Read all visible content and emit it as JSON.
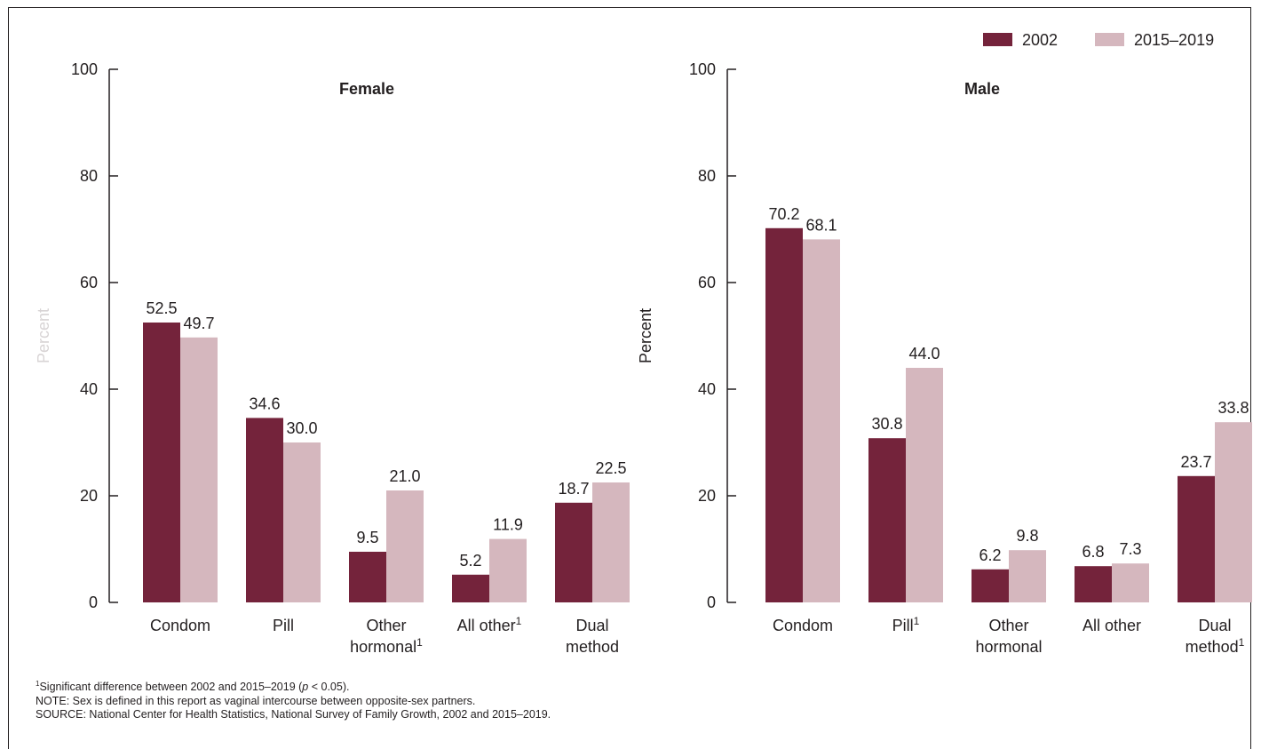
{
  "colors": {
    "series_2002": "#74233b",
    "series_2015_2019": "#d5b7be",
    "axis": "#231f20",
    "ylabel_faded": "#d8d4d5"
  },
  "legend": [
    {
      "name": "2002",
      "color": "#74233b"
    },
    {
      "name": "2015–2019",
      "color": "#d5b7be"
    }
  ],
  "chart_data": [
    {
      "type": "bar",
      "title": "Female",
      "ylabel": "Percent",
      "ylim": [
        0,
        100
      ],
      "yticks": [
        0,
        20,
        40,
        60,
        80,
        100
      ],
      "categories": [
        {
          "line1": "Condom",
          "line2": "",
          "sup": "",
          "sup_line": 0
        },
        {
          "line1": "Pill",
          "line2": "",
          "sup": "",
          "sup_line": 0
        },
        {
          "line1": "Other",
          "line2": "hormonal",
          "sup": "1",
          "sup_line": 2
        },
        {
          "line1": "All other",
          "line2": "",
          "sup": "1",
          "sup_line": 1
        },
        {
          "line1": "Dual",
          "line2": "method",
          "sup": "",
          "sup_line": 0
        }
      ],
      "series": [
        {
          "name": "2002",
          "values": [
            52.5,
            34.6,
            9.5,
            5.2,
            18.7
          ],
          "labels": [
            "52.5",
            "34.6",
            "9.5",
            "5.2",
            "18.7"
          ]
        },
        {
          "name": "2015–2019",
          "values": [
            49.7,
            30.0,
            21.0,
            11.9,
            22.5
          ],
          "labels": [
            "49.7",
            "30.0",
            "21.0",
            "11.9",
            "22.5"
          ]
        }
      ],
      "grid": false
    },
    {
      "type": "bar",
      "title": "Male",
      "ylabel": "Percent",
      "ylim": [
        0,
        100
      ],
      "yticks": [
        0,
        20,
        40,
        60,
        80,
        100
      ],
      "categories": [
        {
          "line1": "Condom",
          "line2": "",
          "sup": "",
          "sup_line": 0
        },
        {
          "line1": "Pill",
          "line2": "",
          "sup": "1",
          "sup_line": 1
        },
        {
          "line1": "Other",
          "line2": "hormonal",
          "sup": "",
          "sup_line": 0
        },
        {
          "line1": "All other",
          "line2": "",
          "sup": "",
          "sup_line": 0
        },
        {
          "line1": "Dual",
          "line2": "method",
          "sup": "1",
          "sup_line": 2
        }
      ],
      "series": [
        {
          "name": "2002",
          "values": [
            70.2,
            30.8,
            6.2,
            6.8,
            23.7
          ],
          "labels": [
            "70.2",
            "30.8",
            "6.2",
            "6.8",
            "23.7"
          ]
        },
        {
          "name": "2015–2019",
          "values": [
            68.1,
            44.0,
            9.8,
            7.3,
            33.8
          ],
          "labels": [
            "68.1",
            "44.0",
            "9.8",
            "7.3",
            "33.8"
          ]
        }
      ],
      "grid": false
    }
  ],
  "footnotes": {
    "sig_sup": "1",
    "sig_pre": "Significant difference between 2002 and 2015–2019 (",
    "sig_p": "p",
    "sig_post": " < 0.05).",
    "note": "NOTE: Sex is defined in this report as vaginal intercourse between opposite-sex partners.",
    "source": "SOURCE: National Center for Health Statistics, National Survey of Family Growth, 2002 and 2015–2019."
  }
}
